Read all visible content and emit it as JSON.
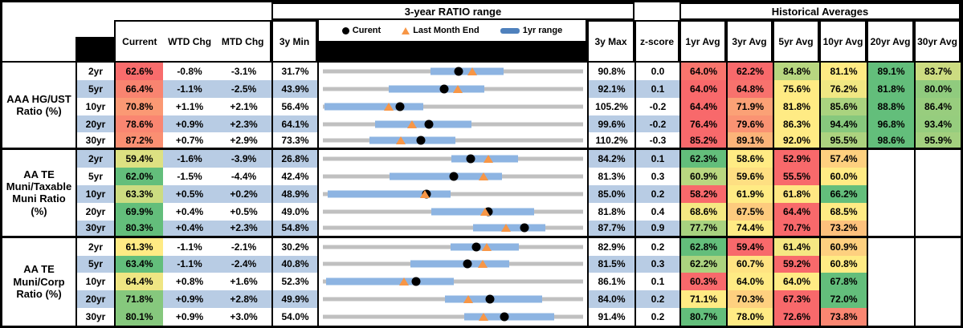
{
  "headers": {
    "ratio_range_title": "3-year RATIO range",
    "historical_title": "Historical Averages",
    "current": "Current",
    "wtd_chg": "WTD Chg",
    "mtd_chg": "MTD Chg",
    "min_3y": "3y Min",
    "max_3y": "3y Max",
    "z_score": "z-score",
    "avg_cols": [
      "1yr Avg",
      "3yr Avg",
      "5yr Avg",
      "10yr Avg",
      "20yr Avg",
      "30yr Avg"
    ],
    "legend": {
      "current": "Curent",
      "last_month_end": "Last Month End",
      "one_yr_range": "1yr range"
    }
  },
  "colors": {
    "band_blue": "#B8CCE4",
    "bar_blue": "#8DB4E2",
    "track_gray": "#C0C0C0",
    "marker_orange": "#F79646",
    "marker_black": "#000000",
    "legend_swatch_blue": "#4F81BD",
    "heat_min_red": "#F8696B",
    "heat_mid_yellow": "#FFEB84",
    "heat_max_green": "#63BE7B"
  },
  "chart_data": {
    "type": "table",
    "note": "Ratios in percent. Each row has a 3y min-max range chart with 1yr range bar, current dot, last-month-end triangle.",
    "row_groups": [
      {
        "label": "AAA HG/UST Ratio (%)",
        "label_lines": [
          "AAA HG/UST",
          "Ratio (%)"
        ],
        "rows": [
          {
            "tenor": "2yr",
            "current": 62.6,
            "wtd_chg": "-0.8%",
            "mtd_chg": "-3.1%",
            "min_3y": 31.7,
            "max_3y": 90.8,
            "one_yr_range": [
              56.1,
              72.7
            ],
            "last_month_end": 65.7,
            "z_score": "0.0",
            "avgs": [
              64.0,
              62.2,
              84.8,
              81.1,
              89.1,
              83.7
            ]
          },
          {
            "tenor": "5yr",
            "current": 66.4,
            "wtd_chg": "-1.1%",
            "mtd_chg": "-2.5%",
            "min_3y": 43.9,
            "max_3y": 92.1,
            "one_yr_range": [
              56.1,
              73.8
            ],
            "last_month_end": 68.9,
            "z_score": "0.1",
            "avgs": [
              64.0,
              64.8,
              75.6,
              76.2,
              81.8,
              80.0
            ]
          },
          {
            "tenor": "10yr",
            "current": 70.8,
            "wtd_chg": "+1.1%",
            "mtd_chg": "+2.1%",
            "min_3y": 56.4,
            "max_3y": 105.2,
            "one_yr_range": [
              56.7,
              75.3
            ],
            "last_month_end": 68.7,
            "z_score": "-0.2",
            "avgs": [
              64.4,
              71.9,
              81.8,
              85.6,
              88.8,
              86.4
            ]
          },
          {
            "tenor": "20yr",
            "current": 78.6,
            "wtd_chg": "+0.9%",
            "mtd_chg": "+2.3%",
            "min_3y": 64.1,
            "max_3y": 99.6,
            "one_yr_range": [
              71.2,
              84.4
            ],
            "last_month_end": 76.3,
            "z_score": "-0.2",
            "avgs": [
              76.4,
              79.6,
              86.3,
              94.4,
              96.8,
              93.4
            ]
          },
          {
            "tenor": "30yr",
            "current": 87.2,
            "wtd_chg": "+0.7%",
            "mtd_chg": "+2.9%",
            "min_3y": 73.3,
            "max_3y": 110.2,
            "one_yr_range": [
              79.9,
              92.1
            ],
            "last_month_end": 84.3,
            "z_score": "-0.3",
            "avgs": [
              85.2,
              89.1,
              92.0,
              95.5,
              98.6,
              95.9
            ]
          }
        ]
      },
      {
        "label": "AA TE Muni/Taxable Muni Ratio (%)",
        "label_lines": [
          "AA TE",
          "Muni/Taxable",
          "Muni Ratio",
          "(%)"
        ],
        "rows": [
          {
            "tenor": "2yr",
            "current": 59.4,
            "wtd_chg": "-1.6%",
            "mtd_chg": "-3.9%",
            "min_3y": 26.8,
            "max_3y": 84.2,
            "one_yr_range": [
              55.1,
              69.8
            ],
            "last_month_end": 63.3,
            "z_score": "0.1",
            "avgs": [
              62.3,
              58.6,
              52.9,
              57.4,
              null,
              null
            ]
          },
          {
            "tenor": "5yr",
            "current": 62.0,
            "wtd_chg": "-1.5%",
            "mtd_chg": "-4.4%",
            "min_3y": 42.4,
            "max_3y": 81.3,
            "one_yr_range": [
              52.4,
              69.2
            ],
            "last_month_end": 66.4,
            "z_score": "0.3",
            "avgs": [
              60.9,
              59.6,
              55.5,
              60.0,
              null,
              null
            ]
          },
          {
            "tenor": "10yr",
            "current": 63.3,
            "wtd_chg": "+0.5%",
            "mtd_chg": "+0.2%",
            "min_3y": 48.9,
            "max_3y": 85.0,
            "one_yr_range": [
              49.6,
              66.6
            ],
            "last_month_end": 63.1,
            "z_score": "0.2",
            "avgs": [
              58.2,
              61.9,
              61.8,
              66.2,
              null,
              null
            ]
          },
          {
            "tenor": "20yr",
            "current": 69.9,
            "wtd_chg": "+0.4%",
            "mtd_chg": "+0.5%",
            "min_3y": 49.0,
            "max_3y": 81.8,
            "one_yr_range": [
              62.7,
              75.6
            ],
            "last_month_end": 69.4,
            "z_score": "0.4",
            "avgs": [
              68.6,
              67.5,
              64.4,
              68.5,
              null,
              null
            ]
          },
          {
            "tenor": "30yr",
            "current": 80.3,
            "wtd_chg": "+0.4%",
            "mtd_chg": "+2.3%",
            "min_3y": 54.8,
            "max_3y": 87.7,
            "one_yr_range": [
              73.8,
              82.9
            ],
            "last_month_end": 78.0,
            "z_score": "0.9",
            "avgs": [
              77.7,
              74.4,
              70.7,
              73.2,
              null,
              null
            ]
          }
        ]
      },
      {
        "label": "AA TE Muni/Corp Ratio (%)",
        "label_lines": [
          "AA TE",
          "Muni/Corp",
          "Ratio (%)"
        ],
        "rows": [
          {
            "tenor": "2yr",
            "current": 61.3,
            "wtd_chg": "-1.1%",
            "mtd_chg": "-2.1%",
            "min_3y": 30.2,
            "max_3y": 82.9,
            "one_yr_range": [
              56.0,
              69.9
            ],
            "last_month_end": 63.4,
            "z_score": "0.2",
            "avgs": [
              62.8,
              59.4,
              61.4,
              60.9,
              null,
              null
            ]
          },
          {
            "tenor": "5yr",
            "current": 63.4,
            "wtd_chg": "-1.1%",
            "mtd_chg": "-2.4%",
            "min_3y": 40.8,
            "max_3y": 81.5,
            "one_yr_range": [
              54.5,
              70.0
            ],
            "last_month_end": 65.8,
            "z_score": "0.3",
            "avgs": [
              62.2,
              60.7,
              59.2,
              60.8,
              null,
              null
            ]
          },
          {
            "tenor": "10yr",
            "current": 64.4,
            "wtd_chg": "+0.8%",
            "mtd_chg": "+1.6%",
            "min_3y": 52.3,
            "max_3y": 86.1,
            "one_yr_range": [
              52.7,
              69.3
            ],
            "last_month_end": 62.8,
            "z_score": "0.1",
            "avgs": [
              60.3,
              64.0,
              64.0,
              67.8,
              null,
              null
            ]
          },
          {
            "tenor": "20yr",
            "current": 71.8,
            "wtd_chg": "+0.9%",
            "mtd_chg": "+2.8%",
            "min_3y": 49.9,
            "max_3y": 84.0,
            "one_yr_range": [
              65.9,
              78.6
            ],
            "last_month_end": 69.0,
            "z_score": "0.2",
            "avgs": [
              71.1,
              70.3,
              67.3,
              72.0,
              null,
              null
            ]
          },
          {
            "tenor": "30yr",
            "current": 80.1,
            "wtd_chg": "+0.9%",
            "mtd_chg": "+3.0%",
            "min_3y": 54.0,
            "max_3y": 91.4,
            "one_yr_range": [
              74.3,
              87.3
            ],
            "last_month_end": 77.1,
            "z_score": "0.2",
            "avgs": [
              80.7,
              78.0,
              72.6,
              73.8,
              null,
              null
            ]
          }
        ]
      }
    ]
  }
}
